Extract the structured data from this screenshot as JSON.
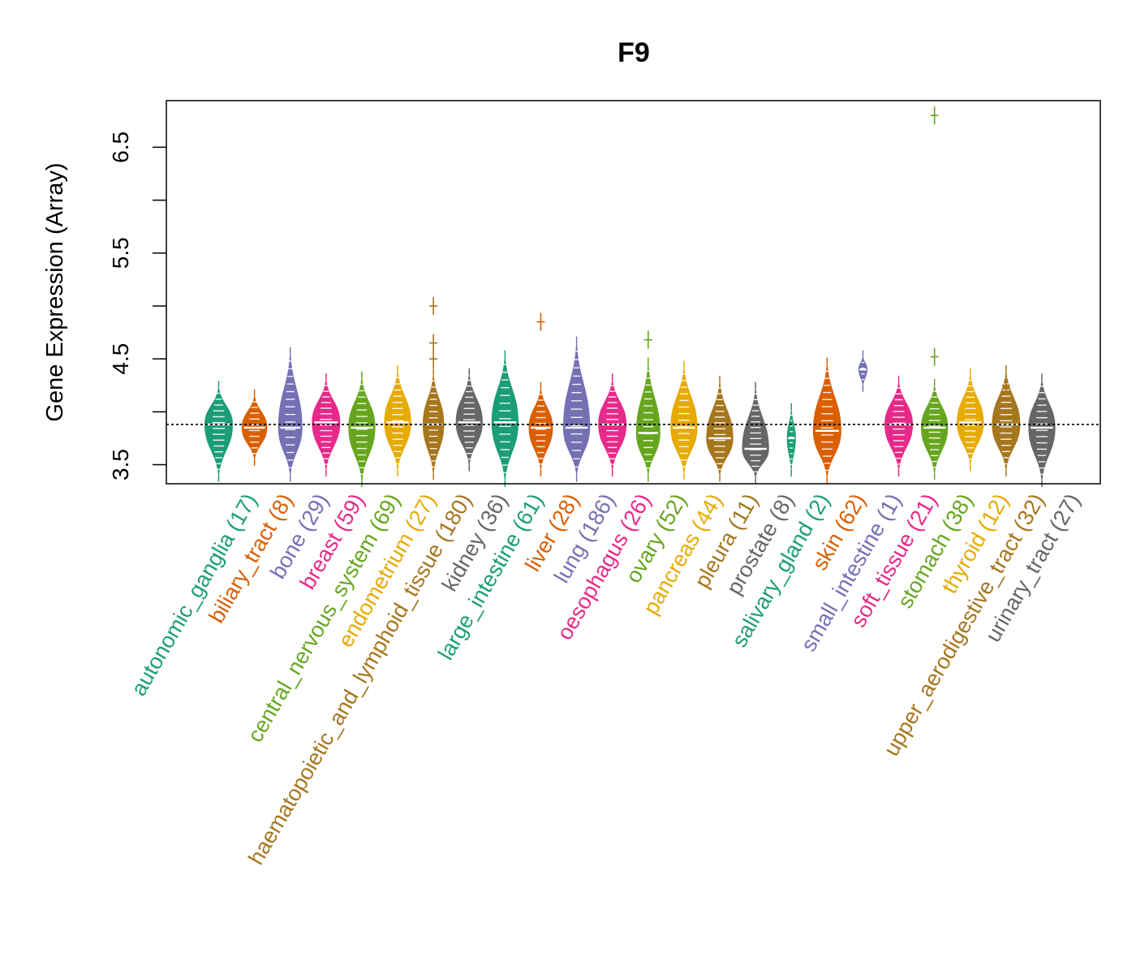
{
  "chart_data": {
    "type": "violin",
    "title": "F9",
    "ylabel": "Gene Expression (Array)",
    "xlabel": "",
    "ylim": [
      3.32,
      6.94
    ],
    "yticks": [
      3.5,
      4.0,
      4.5,
      5.0,
      5.5,
      6.0,
      6.5
    ],
    "ytick_labels": [
      "3.5",
      "",
      "4.5",
      "",
      "5.5",
      "",
      "6.5"
    ],
    "reference_line": 3.88,
    "groups": [
      {
        "name": "autonomic_ganglia",
        "count_label": "(17)",
        "color": "#1b9e77",
        "min": 3.4,
        "median": 3.88,
        "max": 4.23,
        "width": 1.0,
        "outliers": []
      },
      {
        "name": "biliary_tract",
        "count_label": "(8)",
        "color": "#d95f02",
        "min": 3.55,
        "median": 3.85,
        "max": 4.15,
        "width": 0.9,
        "outliers": []
      },
      {
        "name": "bone",
        "count_label": "(29)",
        "color": "#7570b3",
        "min": 3.4,
        "median": 3.85,
        "max": 4.55,
        "width": 0.85,
        "outliers": []
      },
      {
        "name": "breast",
        "count_label": "(59)",
        "color": "#e7298a",
        "min": 3.45,
        "median": 3.9,
        "max": 4.3,
        "width": 1.0,
        "outliers": []
      },
      {
        "name": "central_nervous_system",
        "count_label": "(69)",
        "color": "#66a61e",
        "min": 3.35,
        "median": 3.85,
        "max": 4.32,
        "width": 0.95,
        "outliers": []
      },
      {
        "name": "endometrium",
        "count_label": "(27)",
        "color": "#e6ab02",
        "min": 3.45,
        "median": 3.9,
        "max": 4.38,
        "width": 0.95,
        "outliers": []
      },
      {
        "name": "haematopoietic_and_lymphoid_tissue",
        "count_label": "(180)",
        "color": "#a6761d",
        "min": 3.42,
        "median": 3.88,
        "max": 4.35,
        "width": 0.75,
        "outliers": [
          4.5,
          4.65,
          5.0
        ]
      },
      {
        "name": "kidney",
        "count_label": "(36)",
        "color": "#666666",
        "min": 3.5,
        "median": 3.9,
        "max": 4.35,
        "width": 0.95,
        "outliers": []
      },
      {
        "name": "large_intestine",
        "count_label": "(61)",
        "color": "#1b9e77",
        "min": 3.35,
        "median": 3.9,
        "max": 4.52,
        "width": 0.95,
        "outliers": []
      },
      {
        "name": "liver",
        "count_label": "(28)",
        "color": "#d95f02",
        "min": 3.45,
        "median": 3.85,
        "max": 4.22,
        "width": 0.85,
        "outliers": [
          4.85
        ]
      },
      {
        "name": "lung",
        "count_label": "(186)",
        "color": "#7570b3",
        "min": 3.4,
        "median": 3.85,
        "max": 4.65,
        "width": 0.95,
        "outliers": []
      },
      {
        "name": "oesophagus",
        "count_label": "(26)",
        "color": "#e7298a",
        "min": 3.45,
        "median": 3.88,
        "max": 4.3,
        "width": 1.0,
        "outliers": []
      },
      {
        "name": "ovary",
        "count_label": "(52)",
        "color": "#66a61e",
        "min": 3.4,
        "median": 3.8,
        "max": 4.45,
        "width": 0.85,
        "outliers": [
          4.68
        ]
      },
      {
        "name": "pancreas",
        "count_label": "(44)",
        "color": "#e6ab02",
        "min": 3.42,
        "median": 3.85,
        "max": 4.42,
        "width": 0.95,
        "outliers": []
      },
      {
        "name": "pleura",
        "count_label": "(11)",
        "color": "#a6761d",
        "min": 3.4,
        "median": 3.75,
        "max": 4.28,
        "width": 0.95,
        "outliers": []
      },
      {
        "name": "prostate",
        "count_label": "(8)",
        "color": "#666666",
        "min": 3.38,
        "median": 3.65,
        "max": 4.22,
        "width": 0.95,
        "outliers": []
      },
      {
        "name": "salivary_gland",
        "count_label": "(2)",
        "color": "#1b9e77",
        "min": 3.45,
        "median": 3.75,
        "max": 4.02,
        "width": 0.3,
        "outliers": []
      },
      {
        "name": "skin",
        "count_label": "(62)",
        "color": "#d95f02",
        "min": 3.38,
        "median": 3.82,
        "max": 4.45,
        "width": 1.0,
        "outliers": []
      },
      {
        "name": "small_intestine",
        "count_label": "(1)",
        "color": "#7570b3",
        "min": 4.25,
        "median": 4.4,
        "max": 4.52,
        "width": 0.3,
        "outliers": []
      },
      {
        "name": "soft_tissue",
        "count_label": "(21)",
        "color": "#e7298a",
        "min": 3.45,
        "median": 3.88,
        "max": 4.28,
        "width": 1.0,
        "outliers": []
      },
      {
        "name": "stomach",
        "count_label": "(38)",
        "color": "#66a61e",
        "min": 3.42,
        "median": 3.85,
        "max": 4.25,
        "width": 0.95,
        "outliers": [
          4.52,
          6.8
        ]
      },
      {
        "name": "thyroid",
        "count_label": "(12)",
        "color": "#e6ab02",
        "min": 3.5,
        "median": 3.9,
        "max": 4.35,
        "width": 0.95,
        "outliers": []
      },
      {
        "name": "upper_aerodigestive_tract",
        "count_label": "(32)",
        "color": "#a6761d",
        "min": 3.45,
        "median": 3.88,
        "max": 4.38,
        "width": 1.0,
        "outliers": [
          4.25
        ]
      },
      {
        "name": "urinary_tract",
        "count_label": "(27)",
        "color": "#666666",
        "min": 3.35,
        "median": 3.85,
        "max": 4.3,
        "width": 0.95,
        "outliers": []
      }
    ]
  }
}
